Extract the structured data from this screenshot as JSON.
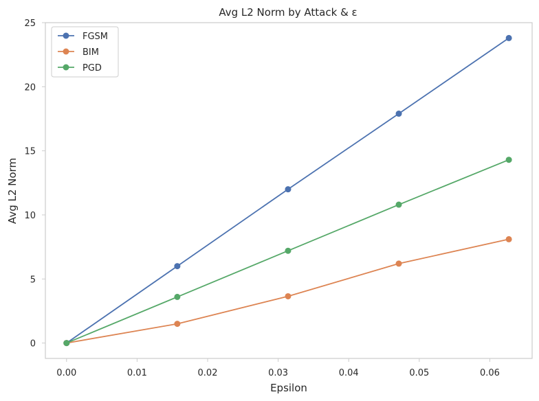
{
  "chart_data": {
    "type": "line",
    "title": "Avg L2 Norm by Attack & ε",
    "xlabel": "Epsilon",
    "ylabel": "Avg L2 Norm",
    "xlim": [
      -0.003,
      0.066
    ],
    "ylim": [
      -1.2,
      25
    ],
    "x_ticks": [
      0.0,
      0.01,
      0.02,
      0.03,
      0.04,
      0.05,
      0.06
    ],
    "x_tick_labels": [
      "0.00",
      "0.01",
      "0.02",
      "0.03",
      "0.04",
      "0.05",
      "0.06"
    ],
    "y_ticks": [
      0,
      5,
      10,
      15,
      20,
      25
    ],
    "y_tick_labels": [
      "0",
      "5",
      "10",
      "15",
      "20",
      "25"
    ],
    "grid": false,
    "legend_position": "top-left",
    "x": [
      0.0,
      0.0157,
      0.0314,
      0.0471,
      0.0627
    ],
    "series": [
      {
        "name": "FGSM",
        "color": "#4c72b0",
        "values": [
          0.0,
          6.0,
          12.0,
          17.9,
          23.8
        ]
      },
      {
        "name": "BIM",
        "color": "#dd8452",
        "values": [
          0.0,
          1.5,
          3.65,
          6.2,
          8.1
        ]
      },
      {
        "name": "PGD",
        "color": "#55a868",
        "values": [
          0.0,
          3.6,
          7.2,
          10.8,
          14.3
        ]
      }
    ]
  }
}
